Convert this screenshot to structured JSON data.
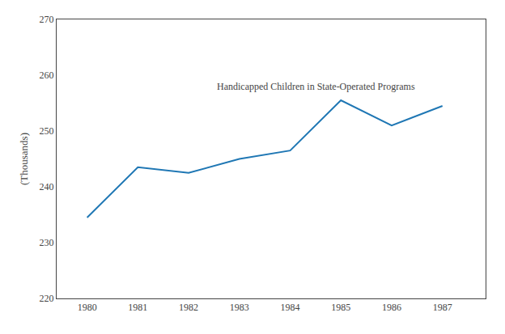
{
  "chart_data": {
    "type": "line",
    "x": [
      1980,
      1981,
      1982,
      1983,
      1984,
      1985,
      1986,
      1987
    ],
    "values": [
      234.5,
      243.5,
      242.5,
      245.0,
      246.5,
      255.5,
      251.0,
      254.5
    ],
    "xlim": [
      1979.4,
      1987.85
    ],
    "xticks": [
      1980,
      1981,
      1982,
      1983,
      1984,
      1985,
      1986,
      1987
    ],
    "ylim": [
      220,
      270
    ],
    "yticks": [
      220,
      230,
      240,
      250,
      260,
      270
    ],
    "ylabel": "(Thousands)",
    "annotation": "Handicapped Children in State-Operated Programs",
    "grid": false
  }
}
